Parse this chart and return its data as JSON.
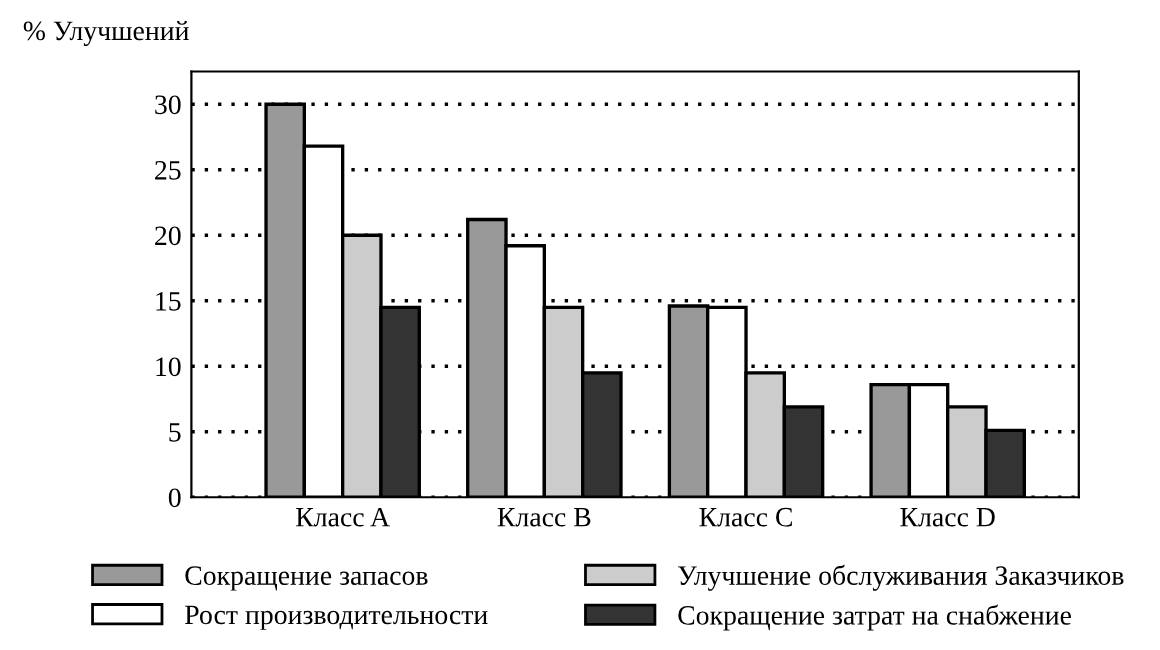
{
  "chart_data": {
    "type": "bar",
    "ylabel": "% Улучшений",
    "categories": [
      "Класс A",
      "Класс B",
      "Класс C",
      "Класс D"
    ],
    "series": [
      {
        "name": "Сокращение запасов",
        "color": "#999999",
        "values": [
          30,
          21.2,
          14.6,
          8.6
        ]
      },
      {
        "name": "Рост производительности",
        "color": "#ffffff",
        "values": [
          26.8,
          19.2,
          14.5,
          8.6
        ]
      },
      {
        "name": "Улучшение обслуживания Заказчиков",
        "color": "#cccccc",
        "values": [
          20,
          14.5,
          9.5,
          6.9
        ]
      },
      {
        "name": "Сокращение затрат на снабжение",
        "color": "#333333",
        "values": [
          14.5,
          9.5,
          6.9,
          5.1
        ]
      }
    ],
    "ylim": [
      0,
      32.5
    ],
    "yticks": [
      0,
      5,
      10,
      15,
      20,
      25,
      30
    ],
    "grid": "y",
    "legend": "bottom"
  }
}
